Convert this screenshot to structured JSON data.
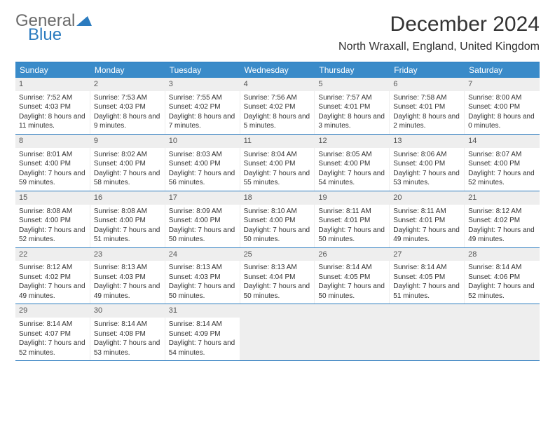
{
  "logo": {
    "text1": "General",
    "text2": "Blue"
  },
  "title": "December 2024",
  "location": "North Wraxall, England, United Kingdom",
  "colors": {
    "header_bg": "#3a8bc9",
    "border": "#2b7bbf",
    "daynum_bg": "#eeeeee",
    "logo_gray": "#6b6b6b",
    "logo_blue": "#2b7bbf"
  },
  "day_headers": [
    "Sunday",
    "Monday",
    "Tuesday",
    "Wednesday",
    "Thursday",
    "Friday",
    "Saturday"
  ],
  "calendar": {
    "first_weekday_index": 0,
    "days": [
      {
        "n": 1,
        "sunrise": "7:52 AM",
        "sunset": "4:03 PM",
        "daylight": "8 hours and 11 minutes."
      },
      {
        "n": 2,
        "sunrise": "7:53 AM",
        "sunset": "4:03 PM",
        "daylight": "8 hours and 9 minutes."
      },
      {
        "n": 3,
        "sunrise": "7:55 AM",
        "sunset": "4:02 PM",
        "daylight": "8 hours and 7 minutes."
      },
      {
        "n": 4,
        "sunrise": "7:56 AM",
        "sunset": "4:02 PM",
        "daylight": "8 hours and 5 minutes."
      },
      {
        "n": 5,
        "sunrise": "7:57 AM",
        "sunset": "4:01 PM",
        "daylight": "8 hours and 3 minutes."
      },
      {
        "n": 6,
        "sunrise": "7:58 AM",
        "sunset": "4:01 PM",
        "daylight": "8 hours and 2 minutes."
      },
      {
        "n": 7,
        "sunrise": "8:00 AM",
        "sunset": "4:00 PM",
        "daylight": "8 hours and 0 minutes."
      },
      {
        "n": 8,
        "sunrise": "8:01 AM",
        "sunset": "4:00 PM",
        "daylight": "7 hours and 59 minutes."
      },
      {
        "n": 9,
        "sunrise": "8:02 AM",
        "sunset": "4:00 PM",
        "daylight": "7 hours and 58 minutes."
      },
      {
        "n": 10,
        "sunrise": "8:03 AM",
        "sunset": "4:00 PM",
        "daylight": "7 hours and 56 minutes."
      },
      {
        "n": 11,
        "sunrise": "8:04 AM",
        "sunset": "4:00 PM",
        "daylight": "7 hours and 55 minutes."
      },
      {
        "n": 12,
        "sunrise": "8:05 AM",
        "sunset": "4:00 PM",
        "daylight": "7 hours and 54 minutes."
      },
      {
        "n": 13,
        "sunrise": "8:06 AM",
        "sunset": "4:00 PM",
        "daylight": "7 hours and 53 minutes."
      },
      {
        "n": 14,
        "sunrise": "8:07 AM",
        "sunset": "4:00 PM",
        "daylight": "7 hours and 52 minutes."
      },
      {
        "n": 15,
        "sunrise": "8:08 AM",
        "sunset": "4:00 PM",
        "daylight": "7 hours and 52 minutes."
      },
      {
        "n": 16,
        "sunrise": "8:08 AM",
        "sunset": "4:00 PM",
        "daylight": "7 hours and 51 minutes."
      },
      {
        "n": 17,
        "sunrise": "8:09 AM",
        "sunset": "4:00 PM",
        "daylight": "7 hours and 50 minutes."
      },
      {
        "n": 18,
        "sunrise": "8:10 AM",
        "sunset": "4:00 PM",
        "daylight": "7 hours and 50 minutes."
      },
      {
        "n": 19,
        "sunrise": "8:11 AM",
        "sunset": "4:01 PM",
        "daylight": "7 hours and 50 minutes."
      },
      {
        "n": 20,
        "sunrise": "8:11 AM",
        "sunset": "4:01 PM",
        "daylight": "7 hours and 49 minutes."
      },
      {
        "n": 21,
        "sunrise": "8:12 AM",
        "sunset": "4:02 PM",
        "daylight": "7 hours and 49 minutes."
      },
      {
        "n": 22,
        "sunrise": "8:12 AM",
        "sunset": "4:02 PM",
        "daylight": "7 hours and 49 minutes."
      },
      {
        "n": 23,
        "sunrise": "8:13 AM",
        "sunset": "4:03 PM",
        "daylight": "7 hours and 49 minutes."
      },
      {
        "n": 24,
        "sunrise": "8:13 AM",
        "sunset": "4:03 PM",
        "daylight": "7 hours and 50 minutes."
      },
      {
        "n": 25,
        "sunrise": "8:13 AM",
        "sunset": "4:04 PM",
        "daylight": "7 hours and 50 minutes."
      },
      {
        "n": 26,
        "sunrise": "8:14 AM",
        "sunset": "4:05 PM",
        "daylight": "7 hours and 50 minutes."
      },
      {
        "n": 27,
        "sunrise": "8:14 AM",
        "sunset": "4:05 PM",
        "daylight": "7 hours and 51 minutes."
      },
      {
        "n": 28,
        "sunrise": "8:14 AM",
        "sunset": "4:06 PM",
        "daylight": "7 hours and 52 minutes."
      },
      {
        "n": 29,
        "sunrise": "8:14 AM",
        "sunset": "4:07 PM",
        "daylight": "7 hours and 52 minutes."
      },
      {
        "n": 30,
        "sunrise": "8:14 AM",
        "sunset": "4:08 PM",
        "daylight": "7 hours and 53 minutes."
      },
      {
        "n": 31,
        "sunrise": "8:14 AM",
        "sunset": "4:09 PM",
        "daylight": "7 hours and 54 minutes."
      }
    ]
  },
  "labels": {
    "sunrise": "Sunrise:",
    "sunset": "Sunset:",
    "daylight": "Daylight:"
  }
}
